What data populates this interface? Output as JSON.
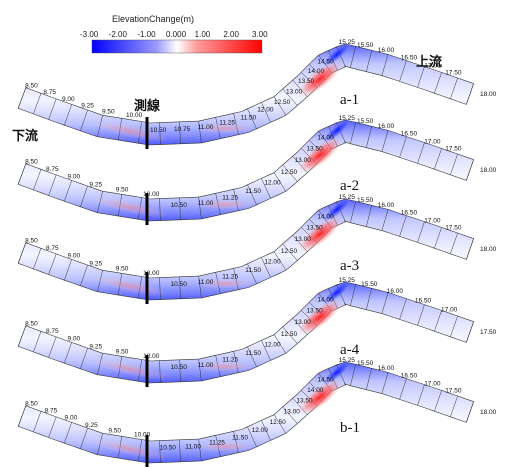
{
  "colorbar": {
    "title": "ElevationChange(m)",
    "ticks": [
      "-3.00",
      "-2.00",
      "-1.00",
      "0.000",
      "1.00",
      "2.00",
      "3.00"
    ],
    "colors": {
      "min": "#1a1aff",
      "mid": "#ffffff",
      "max": "#ff1a1a"
    }
  },
  "labels": {
    "upstream": "上流",
    "downstream": "下流",
    "survey_line": "測線"
  },
  "panels": [
    {
      "case": "a-1",
      "stations_left": [
        "8.50",
        "8.75",
        "9.00",
        "9.25",
        "9.50",
        "10.00",
        "10.50",
        "10.75",
        "11.00",
        "11.25",
        "11.50",
        "12.00",
        "12.50",
        "13.00",
        "13.50",
        "14.00",
        "14.50"
      ],
      "stations_right": [
        "15.25",
        "15.50",
        "16.00",
        "16.50",
        "17.00",
        "17.50",
        "18.00"
      ]
    },
    {
      "case": "a-2",
      "stations_left": [
        "8.50",
        "8.75",
        "9.00",
        "9.25",
        "9.50",
        "10.00",
        "10.50",
        "11.00",
        "11.25",
        "11.50",
        "12.00",
        "12.50",
        "13.00",
        "13.50",
        "14.00"
      ],
      "stations_right": [
        "15.25",
        "15.50",
        "16.00",
        "16.50",
        "17.00",
        "17.50",
        "18.00"
      ]
    },
    {
      "case": "a-3",
      "stations_left": [
        "8.50",
        "8.75",
        "9.00",
        "9.25",
        "9.50",
        "10.00",
        "10.50",
        "11.00",
        "11.25",
        "11.50",
        "12.00",
        "12.50",
        "13.00",
        "13.50",
        "14.00"
      ],
      "stations_right": [
        "15.25",
        "15.50",
        "16.00",
        "16.50",
        "17.00",
        "17.50",
        "18.00"
      ]
    },
    {
      "case": "a-4",
      "stations_left": [
        "8.50",
        "8.75",
        "9.00",
        "9.25",
        "9.50",
        "10.00",
        "10.50",
        "11.00",
        "11.25",
        "11.50",
        "12.00",
        "12.50",
        "13.00",
        "13.50",
        "14.00"
      ],
      "stations_right": [
        "15.25",
        "15.50",
        "16.00",
        "16.50",
        "17.00",
        "17.50"
      ]
    },
    {
      "case": "b-1",
      "stations_left": [
        "8.50",
        "8.75",
        "9.00",
        "9.25",
        "9.50",
        "10.00",
        "10.50",
        "11.00",
        "11.25",
        "11.50",
        "12.00",
        "12.50",
        "13.00",
        "13.50",
        "14.00",
        "14.50"
      ],
      "stations_right": [
        "15.25",
        "15.50",
        "16.00",
        "16.50",
        "17.00",
        "17.50",
        "18.00"
      ]
    }
  ]
}
